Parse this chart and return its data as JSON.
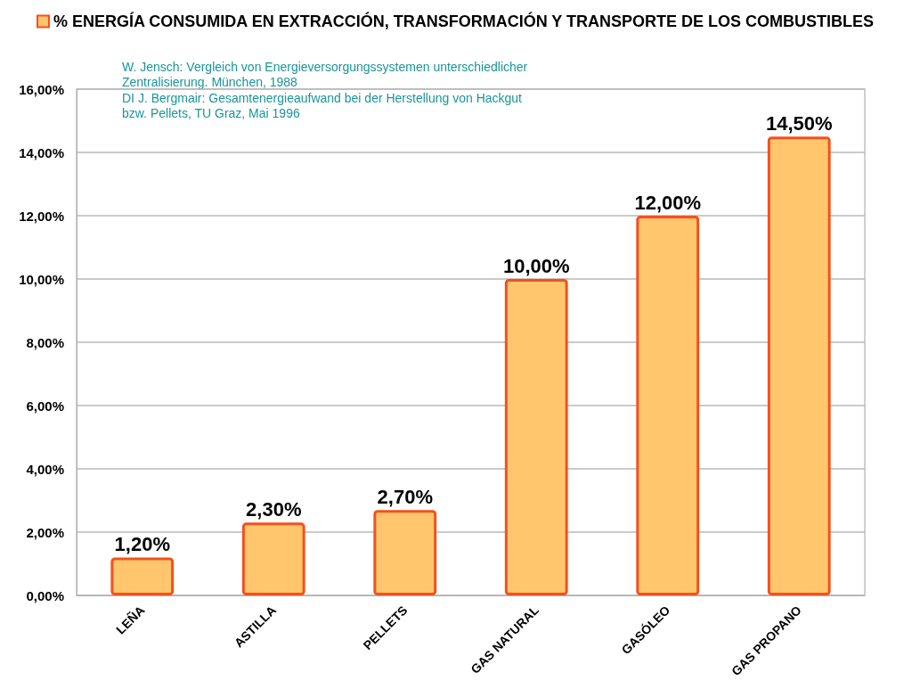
{
  "chart_data": {
    "type": "bar",
    "categories": [
      "LEÑA",
      "ASTILLA",
      "PELLETS",
      "GAS NATURAL",
      "GASÓLEO",
      "GAS PROPANO"
    ],
    "series": [
      {
        "name": "% ENERGÍA CONSUMIDA EN EXTRACCIÓN, TRANSFORMACIÓN Y TRANSPORTE DE LOS COMBUSTIBLES",
        "color": "#ffc66d",
        "values": [
          1.2,
          2.3,
          2.7,
          10,
          12,
          14.5
        ],
        "value_labels": [
          "1,20%",
          "2,30%",
          "2,70%",
          "10,00%",
          "12,00%",
          "14,50%"
        ]
      }
    ],
    "ylim": [
      0,
      16
    ],
    "yticks": [
      {
        "value": 0,
        "label": "0,00%"
      },
      {
        "value": 2,
        "label": "2,00%"
      },
      {
        "value": 4,
        "label": "4,00%"
      },
      {
        "value": 6,
        "label": "6,00%"
      },
      {
        "value": 8,
        "label": "8,00%"
      },
      {
        "value": 10,
        "label": "10,00%"
      },
      {
        "value": 12,
        "label": "12,00%"
      },
      {
        "value": 14,
        "label": "14,00%"
      },
      {
        "value": 16,
        "label": "16,00%"
      }
    ],
    "grid": "y",
    "legend": "top",
    "annotations": [
      "W. Jensch: Vergleich von Energieversorgungssystemen unterschiedlicher Zentralisierung. München, 1988",
      "DI J. Bergmair: Gesamtenergieaufwand bei der Herstellung von Hackgut bzw. Pellets, TU Graz, Mai 1996"
    ]
  }
}
